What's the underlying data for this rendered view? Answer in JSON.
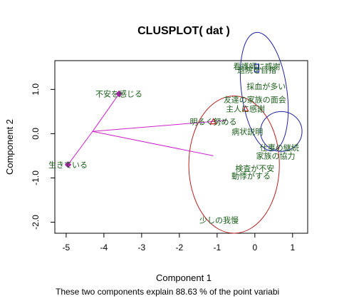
{
  "chart_data": {
    "type": "scatter",
    "title": "CLUSPLOT( dat )",
    "xlabel": "Component 1",
    "ylabel": "Component 2",
    "subtitle": "These two components explain 88.63 % of the point variabi",
    "xlim": [
      -5.3,
      1.4
    ],
    "ylim": [
      -2.25,
      1.65
    ],
    "xticks": [
      -5,
      -4,
      -3,
      -2,
      -1,
      0,
      1
    ],
    "yticks": [
      -2.0,
      -1.0,
      0.0,
      1.0
    ],
    "points": [
      {
        "label": "看護師に感謝",
        "x": 0.05,
        "y": 1.52,
        "marker": "square",
        "color": "#2222cc"
      },
      {
        "label": "退院を目指",
        "x": 0.05,
        "y": 1.44,
        "marker": "square",
        "color": "#2222cc"
      },
      {
        "label": "採血が多い",
        "x": 0.3,
        "y": 1.07,
        "marker": "none",
        "color": "#1a5c1a"
      },
      {
        "label": "友達の家族の面会",
        "x": 0.0,
        "y": 0.77,
        "marker": "none",
        "color": "#1a5c1a"
      },
      {
        "label": "主人に感謝",
        "x": -0.25,
        "y": 0.56,
        "marker": "triangle",
        "color": "#cc2222"
      },
      {
        "label": "明るく努める",
        "x": -1.1,
        "y": 0.27,
        "marker": "triangle",
        "color": "#cc2222"
      },
      {
        "label": "病状説明",
        "x": -0.2,
        "y": 0.05,
        "marker": "none",
        "color": "#1a5c1a"
      },
      {
        "label": "不安を感じる",
        "x": -3.6,
        "y": 0.9,
        "marker": "diamond",
        "color": "#aa22aa"
      },
      {
        "label": "生きている",
        "x": -4.95,
        "y": -0.7,
        "marker": "diamond",
        "color": "#aa22aa"
      },
      {
        "label": "仕事の継続",
        "x": 0.65,
        "y": -0.32,
        "marker": "none",
        "color": "#1a5c1a"
      },
      {
        "label": "家族の協力",
        "x": 0.55,
        "y": -0.5,
        "marker": "none",
        "color": "#1a5c1a"
      },
      {
        "label": "検査が不安",
        "x": 0.0,
        "y": -0.78,
        "marker": "none",
        "color": "#1a5c1a"
      },
      {
        "label": "動悸がする",
        "x": -0.1,
        "y": -0.95,
        "marker": "none",
        "color": "#1a5c1a"
      },
      {
        "label": "少しの我慢",
        "x": -0.95,
        "y": -1.95,
        "marker": "none",
        "color": "#1a5c1a"
      }
    ],
    "clusters": [
      {
        "shape": "ellipse",
        "cx": 0.25,
        "cy": 0.95,
        "rx": 0.6,
        "ry": 1.35,
        "rotate": -8,
        "color": "#2222aa"
      },
      {
        "shape": "ellipse",
        "cx": -0.55,
        "cy": -0.7,
        "rx": 1.2,
        "ry": 1.55,
        "rotate": 0,
        "color": "#bb2222"
      },
      {
        "shape": "ellipse",
        "cx": 0.7,
        "cy": 0.05,
        "rx": 0.55,
        "ry": 0.45,
        "rotate": 0,
        "color": "#2222aa"
      }
    ],
    "link_lines": [
      {
        "from": [
          -4.3,
          0.05
        ],
        "to": [
          -3.6,
          0.9
        ]
      },
      {
        "from": [
          -4.3,
          0.05
        ],
        "to": [
          -4.95,
          -0.7
        ]
      },
      {
        "from": [
          -4.3,
          0.05
        ],
        "to": [
          -0.75,
          0.3
        ]
      },
      {
        "from": [
          -4.3,
          0.05
        ],
        "to": [
          -1.1,
          -0.5
        ]
      }
    ],
    "colors": {
      "link": "#cc22cc",
      "label": "#1a5c1a"
    }
  }
}
